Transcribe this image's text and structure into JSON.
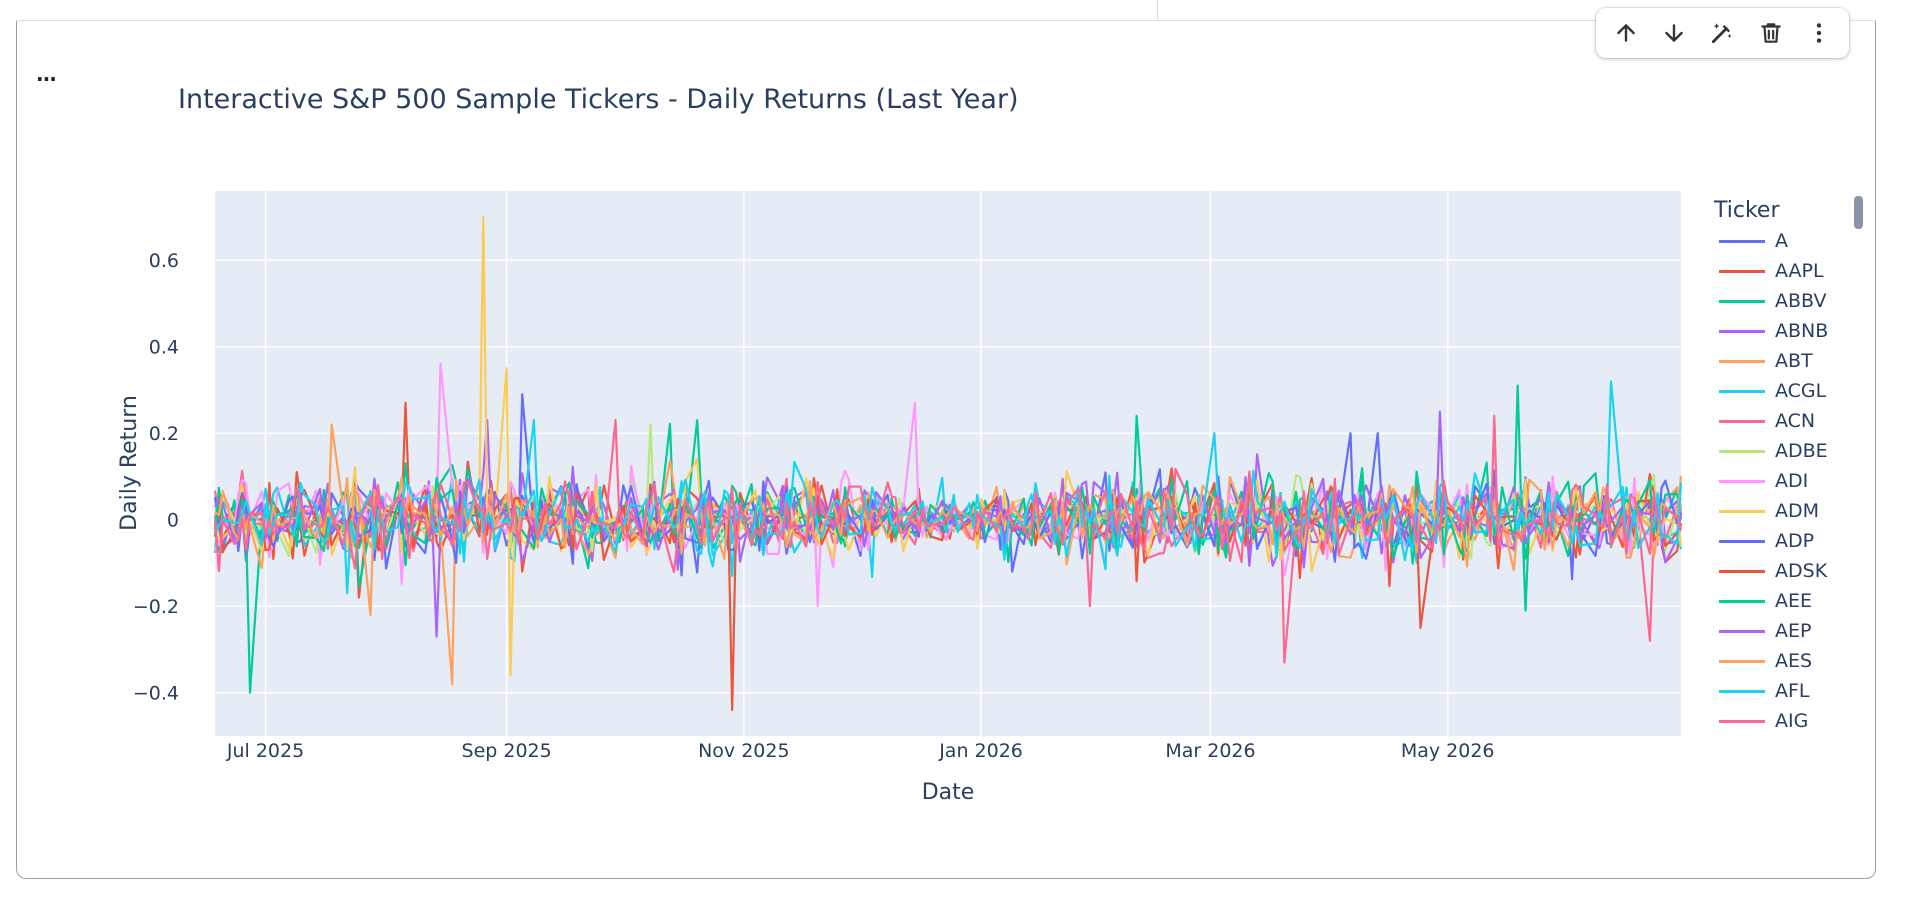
{
  "toolbar": {
    "buttons": [
      {
        "name": "move-up",
        "icon": "arrow-up-icon"
      },
      {
        "name": "move-down",
        "icon": "arrow-down-icon"
      },
      {
        "name": "edit",
        "icon": "magic-wand-icon"
      },
      {
        "name": "delete",
        "icon": "trash-icon"
      },
      {
        "name": "more",
        "icon": "more-vertical-icon"
      }
    ]
  },
  "cell": {
    "more_label": "..."
  },
  "chart_data": {
    "type": "line",
    "title": "Interactive S&P 500 Sample Tickers - Daily Returns (Last Year)",
    "xlabel": "Date",
    "ylabel": "Daily Return",
    "x_range": [
      "2025-06-18",
      "2026-06-30"
    ],
    "ylim": [
      -0.5,
      0.76
    ],
    "x_ticks": [
      {
        "date": "2025-07-01",
        "label": "Jul 2025"
      },
      {
        "date": "2025-09-01",
        "label": "Sep 2025"
      },
      {
        "date": "2025-11-01",
        "label": "Nov 2025"
      },
      {
        "date": "2026-01-01",
        "label": "Jan 2026"
      },
      {
        "date": "2026-03-01",
        "label": "Mar 2026"
      },
      {
        "date": "2026-05-01",
        "label": "May 2026"
      }
    ],
    "y_ticks": [
      {
        "value": 0.6,
        "label": "0.6"
      },
      {
        "value": 0.4,
        "label": "0.4"
      },
      {
        "value": 0.2,
        "label": "0.2"
      },
      {
        "value": 0,
        "label": "0"
      },
      {
        "value": -0.2,
        "label": "−0.2"
      },
      {
        "value": -0.4,
        "label": "−0.4"
      }
    ],
    "grid": true,
    "legend_title": "Ticker",
    "legend_position": "right",
    "plot_background": "#e5ecf6",
    "series": [
      {
        "name": "A",
        "color": "#636efa",
        "volatility": 0.045,
        "spikes": [
          {
            "date": "2025-09-05",
            "value": 0.29
          },
          {
            "date": "2026-04-12",
            "value": 0.2
          }
        ]
      },
      {
        "name": "AAPL",
        "color": "#ef553b",
        "volatility": 0.045,
        "spikes": [
          {
            "date": "2025-08-06",
            "value": 0.27
          },
          {
            "date": "2025-07-25",
            "value": -0.18
          }
        ]
      },
      {
        "name": "ABBV",
        "color": "#00cc96",
        "volatility": 0.05,
        "spikes": [
          {
            "date": "2025-06-28",
            "value": -0.4
          },
          {
            "date": "2026-05-19",
            "value": 0.31
          },
          {
            "date": "2025-10-20",
            "value": 0.23
          }
        ]
      },
      {
        "name": "ABNB",
        "color": "#ab63fa",
        "volatility": 0.045,
        "spikes": [
          {
            "date": "2025-08-14",
            "value": -0.27
          },
          {
            "date": "2025-08-27",
            "value": 0.23
          }
        ]
      },
      {
        "name": "ABT",
        "color": "#ffa15a",
        "volatility": 0.04,
        "spikes": [
          {
            "date": "2025-07-19",
            "value": 0.22
          },
          {
            "date": "2025-08-17",
            "value": -0.38
          }
        ]
      },
      {
        "name": "ACGL",
        "color": "#19d3f3",
        "volatility": 0.045,
        "spikes": [
          {
            "date": "2026-06-13",
            "value": 0.32
          },
          {
            "date": "2025-09-07",
            "value": 0.23
          }
        ]
      },
      {
        "name": "ACN",
        "color": "#ff6692",
        "volatility": 0.04,
        "spikes": [
          {
            "date": "2025-09-29",
            "value": 0.23
          },
          {
            "date": "2026-03-20",
            "value": -0.33
          },
          {
            "date": "2026-06-21",
            "value": -0.28
          }
        ]
      },
      {
        "name": "ADBE",
        "color": "#b6e880",
        "volatility": 0.035,
        "spikes": [
          {
            "date": "2025-10-08",
            "value": 0.22
          }
        ]
      },
      {
        "name": "ADI",
        "color": "#ff97ff",
        "volatility": 0.045,
        "spikes": [
          {
            "date": "2025-08-15",
            "value": 0.36
          },
          {
            "date": "2025-12-15",
            "value": 0.27
          },
          {
            "date": "2025-11-20",
            "value": -0.2
          }
        ]
      },
      {
        "name": "ADM",
        "color": "#fecb52",
        "volatility": 0.045,
        "spikes": [
          {
            "date": "2025-08-26",
            "value": 0.7
          },
          {
            "date": "2025-09-01",
            "value": 0.35
          },
          {
            "date": "2025-09-02",
            "value": -0.36
          }
        ]
      },
      {
        "name": "ADP",
        "color": "#636efa",
        "volatility": 0.04,
        "spikes": [
          {
            "date": "2026-04-05",
            "value": 0.2
          }
        ]
      },
      {
        "name": "ADSK",
        "color": "#ef553b",
        "volatility": 0.04,
        "spikes": [
          {
            "date": "2025-10-29",
            "value": -0.44
          },
          {
            "date": "2026-04-25",
            "value": -0.25
          }
        ]
      },
      {
        "name": "AEE",
        "color": "#00cc96",
        "volatility": 0.045,
        "spikes": [
          {
            "date": "2026-02-10",
            "value": 0.24
          },
          {
            "date": "2026-05-21",
            "value": -0.21
          }
        ]
      },
      {
        "name": "AEP",
        "color": "#ab63fa",
        "volatility": 0.04,
        "spikes": [
          {
            "date": "2026-04-29",
            "value": 0.25
          }
        ]
      },
      {
        "name": "AES",
        "color": "#ffa15a",
        "volatility": 0.04,
        "spikes": [
          {
            "date": "2025-07-28",
            "value": -0.22
          }
        ]
      },
      {
        "name": "AFL",
        "color": "#19d3f3",
        "volatility": 0.045,
        "spikes": [
          {
            "date": "2025-07-22",
            "value": -0.17
          },
          {
            "date": "2026-03-02",
            "value": 0.2
          }
        ]
      },
      {
        "name": "AIG",
        "color": "#ff6692",
        "volatility": 0.045,
        "spikes": [
          {
            "date": "2026-05-13",
            "value": 0.24
          },
          {
            "date": "2026-01-29",
            "value": -0.2
          }
        ]
      }
    ]
  }
}
